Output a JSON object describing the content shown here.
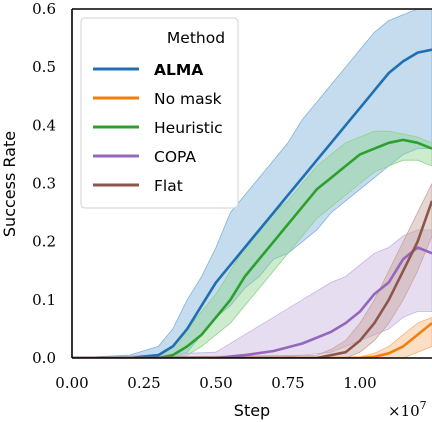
{
  "chart_data": {
    "type": "line",
    "xlabel": "Step",
    "ylabel": "Success Rate",
    "x_multiplier_label": "×10",
    "x_multiplier_exp": "7",
    "xlim": [
      0,
      1.25
    ],
    "ylim": [
      0,
      0.6
    ],
    "x_ticks": [
      0.0,
      0.25,
      0.5,
      0.75,
      1.0
    ],
    "x_tick_labels": [
      "0.00",
      "0.25",
      "0.50",
      "0.75",
      "1.00"
    ],
    "y_ticks": [
      0.0,
      0.1,
      0.2,
      0.3,
      0.4,
      0.5,
      0.6
    ],
    "y_tick_labels": [
      "0.0",
      "0.1",
      "0.2",
      "0.3",
      "0.4",
      "0.5",
      "0.6"
    ],
    "grid": false,
    "legend": {
      "title": "Method",
      "placement": "top-left"
    },
    "series": [
      {
        "name": "ALMA",
        "bold": true,
        "color": "#1f6fb2",
        "band_color": "#7fb2dc",
        "x": [
          0,
          0.2,
          0.3,
          0.35,
          0.4,
          0.45,
          0.5,
          0.55,
          0.6,
          0.65,
          0.7,
          0.75,
          0.8,
          0.85,
          0.9,
          0.95,
          1.0,
          1.05,
          1.1,
          1.15,
          1.2,
          1.25
        ],
        "y": [
          0,
          0.0,
          0.005,
          0.02,
          0.05,
          0.09,
          0.13,
          0.16,
          0.19,
          0.22,
          0.25,
          0.28,
          0.31,
          0.34,
          0.37,
          0.4,
          0.43,
          0.46,
          0.49,
          0.51,
          0.525,
          0.53
        ],
        "lower": [
          0,
          0.0,
          0.0,
          0.0,
          0.01,
          0.04,
          0.07,
          0.09,
          0.12,
          0.14,
          0.17,
          0.18,
          0.2,
          0.22,
          0.25,
          0.27,
          0.29,
          0.31,
          0.33,
          0.35,
          0.36,
          0.36
        ],
        "upper": [
          0,
          0.005,
          0.02,
          0.05,
          0.1,
          0.14,
          0.19,
          0.25,
          0.28,
          0.31,
          0.34,
          0.37,
          0.41,
          0.44,
          0.47,
          0.5,
          0.53,
          0.56,
          0.58,
          0.59,
          0.6,
          0.6
        ]
      },
      {
        "name": "No mask",
        "bold": false,
        "color": "#f07f12",
        "band_color": "#f6b57c",
        "x": [
          0,
          0.9,
          1.0,
          1.05,
          1.1,
          1.15,
          1.2,
          1.25
        ],
        "y": [
          0,
          0.0,
          0.0,
          0.002,
          0.008,
          0.02,
          0.04,
          0.06
        ],
        "lower": [
          0,
          0.0,
          0.0,
          0.0,
          0.0,
          0.0,
          0.01,
          0.02
        ],
        "upper": [
          0,
          0.0,
          0.002,
          0.008,
          0.02,
          0.04,
          0.06,
          0.07
        ]
      },
      {
        "name": "Heuristic",
        "bold": false,
        "color": "#2ca02c",
        "band_color": "#90d290",
        "x": [
          0,
          0.3,
          0.35,
          0.4,
          0.45,
          0.5,
          0.55,
          0.6,
          0.65,
          0.7,
          0.75,
          0.8,
          0.85,
          0.9,
          0.95,
          1.0,
          1.05,
          1.1,
          1.15,
          1.2,
          1.25
        ],
        "y": [
          0,
          0.0,
          0.005,
          0.02,
          0.04,
          0.07,
          0.1,
          0.14,
          0.17,
          0.2,
          0.23,
          0.26,
          0.29,
          0.31,
          0.33,
          0.35,
          0.36,
          0.37,
          0.375,
          0.37,
          0.36
        ],
        "lower": [
          0,
          0.0,
          0.0,
          0.005,
          0.02,
          0.04,
          0.06,
          0.09,
          0.12,
          0.15,
          0.18,
          0.21,
          0.24,
          0.26,
          0.28,
          0.3,
          0.32,
          0.33,
          0.34,
          0.34,
          0.33
        ],
        "upper": [
          0,
          0.002,
          0.02,
          0.05,
          0.08,
          0.11,
          0.15,
          0.19,
          0.22,
          0.25,
          0.27,
          0.3,
          0.33,
          0.35,
          0.37,
          0.38,
          0.39,
          0.39,
          0.385,
          0.38,
          0.37
        ]
      },
      {
        "name": "COPA",
        "bold": false,
        "color": "#9467bd",
        "band_color": "#c9b3df",
        "x": [
          0,
          0.5,
          0.6,
          0.7,
          0.8,
          0.9,
          0.95,
          1.0,
          1.05,
          1.1,
          1.15,
          1.2,
          1.25
        ],
        "y": [
          0,
          0.0,
          0.005,
          0.012,
          0.025,
          0.045,
          0.06,
          0.08,
          0.11,
          0.13,
          0.17,
          0.19,
          0.18
        ],
        "lower": [
          0,
          0.0,
          0.0,
          0.0,
          0.005,
          0.01,
          0.02,
          0.03,
          0.04,
          0.05,
          0.07,
          0.08,
          0.08
        ],
        "upper": [
          0,
          0.01,
          0.04,
          0.07,
          0.1,
          0.13,
          0.14,
          0.16,
          0.18,
          0.19,
          0.21,
          0.22,
          0.22
        ]
      },
      {
        "name": "Flat",
        "bold": false,
        "color": "#8c564b",
        "band_color": "#c8a59e",
        "x": [
          0,
          0.85,
          0.9,
          0.95,
          1.0,
          1.05,
          1.1,
          1.15,
          1.2,
          1.25
        ],
        "y": [
          0,
          0.0,
          0.005,
          0.01,
          0.03,
          0.06,
          0.1,
          0.15,
          0.2,
          0.27
        ],
        "lower": [
          0,
          0.0,
          0.0,
          0.0,
          0.01,
          0.03,
          0.06,
          0.1,
          0.15,
          0.21
        ],
        "upper": [
          0,
          0.005,
          0.015,
          0.03,
          0.06,
          0.1,
          0.15,
          0.2,
          0.25,
          0.3
        ]
      }
    ]
  }
}
